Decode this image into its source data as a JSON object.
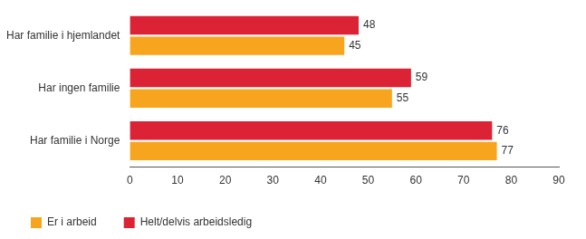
{
  "chart_data": {
    "type": "bar",
    "orientation": "horizontal",
    "categories": [
      "Har familie i hjemlandet",
      "Har ingen familie",
      "Har familie i Norge"
    ],
    "series": [
      {
        "name": "Helt/delvis arbeidsledig",
        "color": "#dc2235",
        "values": [
          48,
          59,
          76
        ]
      },
      {
        "name": "Er i arbeid",
        "color": "#f7a51e",
        "values": [
          45,
          55,
          77
        ]
      }
    ],
    "xlim": [
      0,
      90
    ],
    "xticks": [
      0,
      10,
      20,
      30,
      40,
      50,
      60,
      70,
      80,
      90
    ],
    "grid": false,
    "legend": "bottom",
    "data_labels": true
  }
}
